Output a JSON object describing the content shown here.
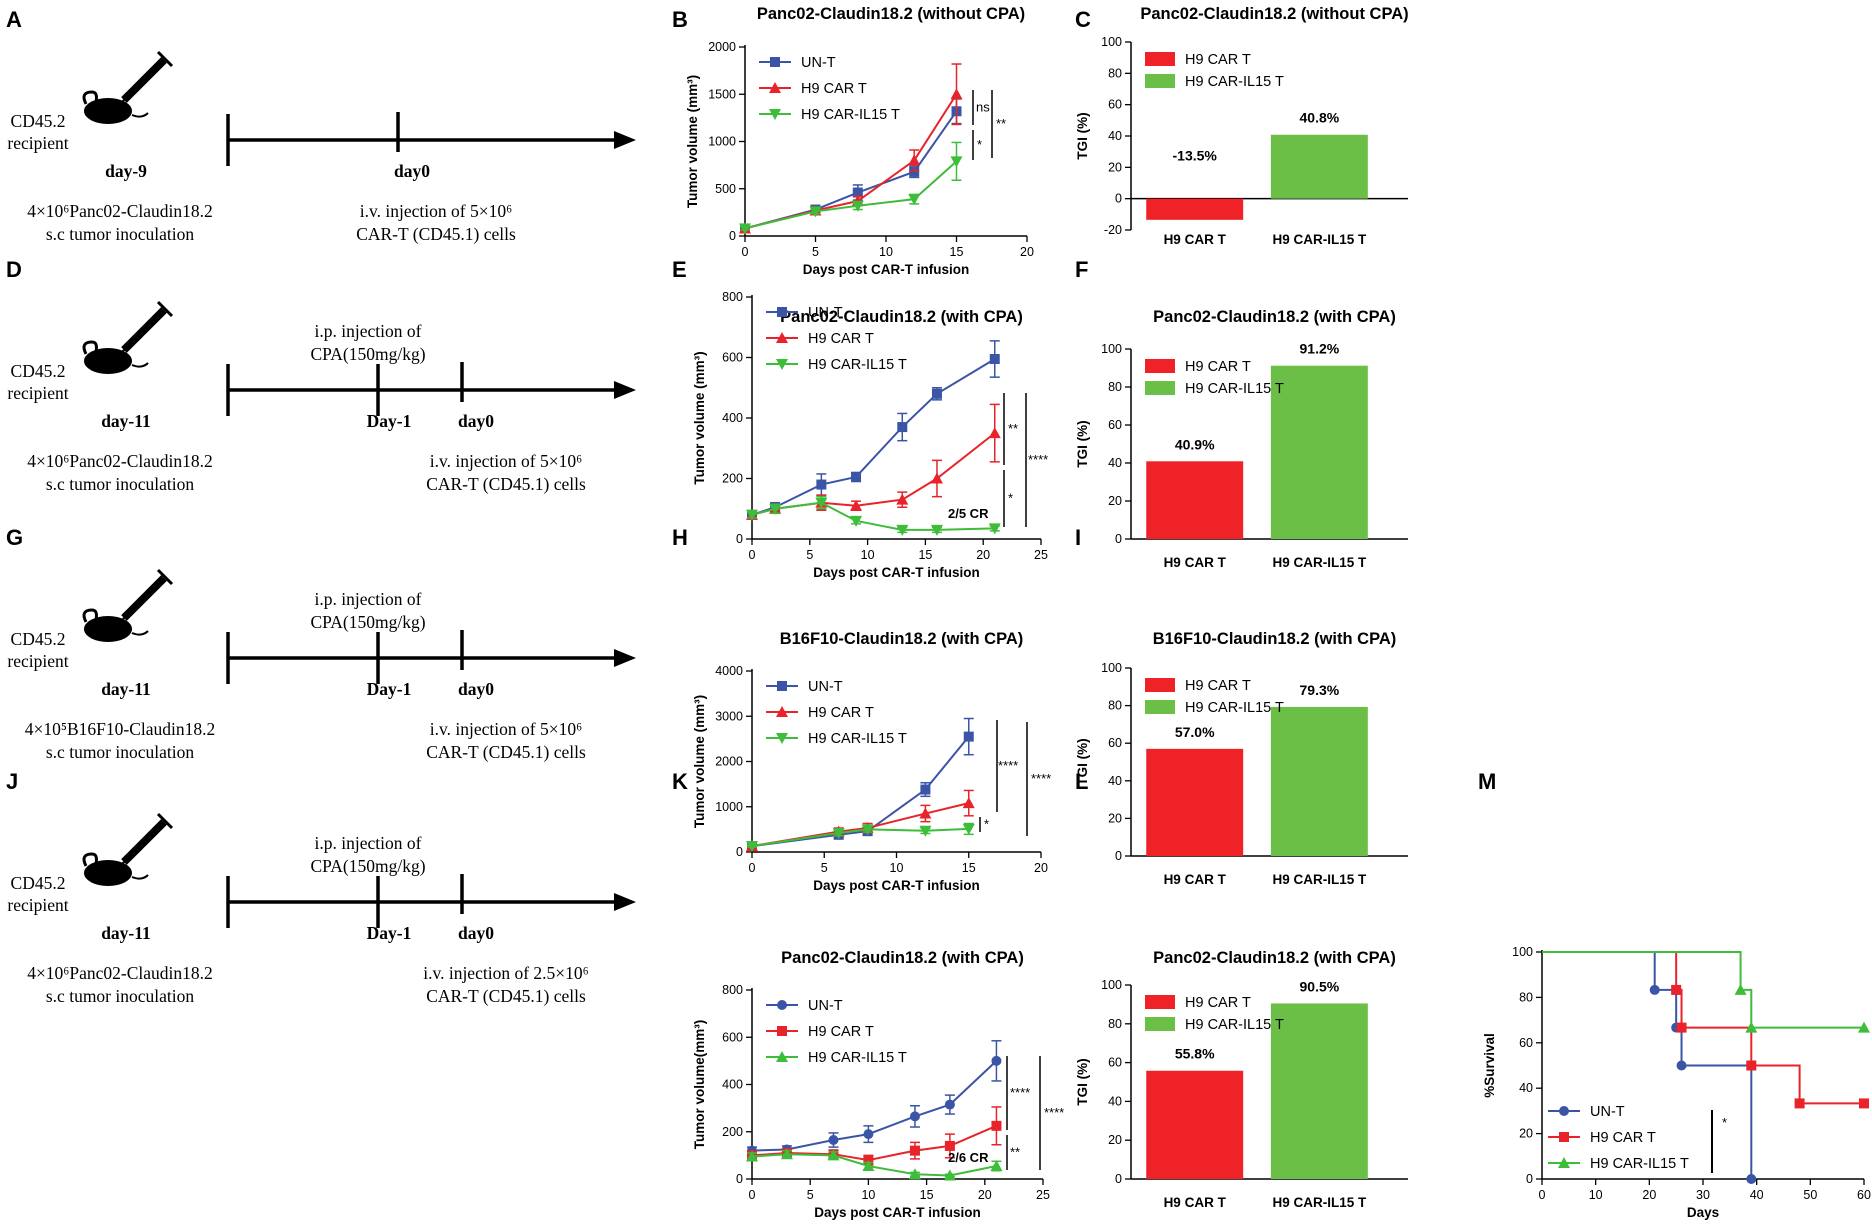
{
  "colors": {
    "unt": "#3a55a6",
    "car": "#e8232a",
    "il15": "#3ebd3a",
    "bar_car": "#ee2227",
    "bar_il15": "#6cbf46"
  },
  "panel_letters": [
    "A",
    "B",
    "C",
    "D",
    "E",
    "F",
    "G",
    "H",
    "I",
    "J",
    "K",
    "L",
    "M"
  ],
  "timelines": [
    {
      "letter": "A",
      "recipient": [
        "CD45.2",
        "recipient"
      ],
      "start_day": "day-9",
      "mid": null,
      "end_day": "day0",
      "inoc": [
        "4×10⁶Panc02-Claudin18.2",
        "s.c tumor inoculation"
      ],
      "inj": [
        "i.v. injection of 5×10⁶",
        "CAR-T (CD45.1) cells"
      ]
    },
    {
      "letter": "D",
      "recipient": [
        "CD45.2",
        "recipient"
      ],
      "start_day": "day-11",
      "mid": {
        "day": "Day-1",
        "text": [
          "i.p. injection of",
          "CPA(150mg/kg)"
        ]
      },
      "end_day": "day0",
      "inoc": [
        "4×10⁶Panc02-Claudin18.2",
        "s.c tumor inoculation"
      ],
      "inj": [
        "i.v. injection of 5×10⁶",
        "CAR-T (CD45.1) cells"
      ]
    },
    {
      "letter": "G",
      "recipient": [
        "CD45.2",
        "recipient"
      ],
      "start_day": "day-11",
      "mid": {
        "day": "Day-1",
        "text": [
          "i.p. injection of",
          "CPA(150mg/kg)"
        ]
      },
      "end_day": "day0",
      "inoc": [
        "4×10⁵B16F10-Claudin18.2",
        "s.c tumor inoculation"
      ],
      "inj": [
        "i.v. injection of 5×10⁶",
        "CAR-T (CD45.1) cells"
      ]
    },
    {
      "letter": "J",
      "recipient": [
        "CD45.2",
        "recipient"
      ],
      "start_day": "day-11",
      "mid": {
        "day": "Day-1",
        "text": [
          "i.p. injection of",
          "CPA(150mg/kg)"
        ]
      },
      "end_day": "day0",
      "inoc": [
        "4×10⁶Panc02-Claudin18.2",
        "s.c tumor inoculation"
      ],
      "inj": [
        "i.v. injection of 2.5×10⁶",
        "CAR-T (CD45.1) cells"
      ]
    }
  ],
  "chart_data": [
    {
      "letter": "B",
      "type": "line",
      "title": "Panc02-Claudin18.2 (without CPA)",
      "xlabel": "Days post CAR-T infusion",
      "ylabel": "Tumor volume (mm³)",
      "xlim": [
        0,
        20
      ],
      "xticks": [
        0,
        5,
        10,
        15,
        20
      ],
      "ylim": [
        0,
        2000
      ],
      "yticks": [
        0,
        500,
        1000,
        1500,
        2000
      ],
      "series": [
        {
          "name": "UN-T",
          "marker": "square",
          "x": [
            0,
            5,
            8,
            12,
            15
          ],
          "y": [
            80,
            280,
            460,
            680,
            1320
          ],
          "err": [
            15,
            30,
            80,
            60,
            130
          ]
        },
        {
          "name": "H9 CAR T",
          "marker": "triangle",
          "x": [
            0,
            5,
            8,
            12,
            15
          ],
          "y": [
            80,
            270,
            370,
            800,
            1500
          ],
          "err": [
            15,
            30,
            50,
            110,
            320
          ]
        },
        {
          "name": "H9 CAR-IL15 T",
          "marker": "triangle-down",
          "x": [
            0,
            5,
            8,
            12,
            15
          ],
          "y": [
            80,
            260,
            320,
            390,
            790
          ],
          "err": [
            15,
            25,
            40,
            50,
            200
          ]
        }
      ],
      "annotations": [
        {
          "text": "ns"
        },
        {
          "text": "*"
        },
        {
          "text": "**"
        }
      ]
    },
    {
      "letter": "C",
      "type": "bar",
      "title": "Panc02-Claudin18.2 (without CPA)",
      "ylabel": "TGI (%)",
      "ylim": [
        -20,
        100
      ],
      "yticks": [
        -20,
        0,
        20,
        40,
        60,
        80,
        100
      ],
      "categories": [
        "H9 CAR T",
        "H9 CAR-IL15 T"
      ],
      "values": [
        -13.5,
        40.8
      ],
      "labels": [
        "-13.5%",
        "40.8%"
      ],
      "legend": [
        "H9 CAR T",
        "H9 CAR-IL15 T"
      ]
    },
    {
      "letter": "E",
      "type": "line",
      "title": "Panc02-Claudin18.2 (with CPA)",
      "xlabel": "Days post CAR-T infusion",
      "ylabel": "Tumor volume (mm³)",
      "xlim": [
        0,
        25
      ],
      "xticks": [
        0,
        5,
        10,
        15,
        20,
        25
      ],
      "ylim": [
        0,
        800
      ],
      "yticks": [
        0,
        200,
        400,
        600,
        800
      ],
      "series": [
        {
          "name": "UN-T",
          "marker": "square",
          "x": [
            0,
            2,
            6,
            9,
            13,
            16,
            21
          ],
          "y": [
            80,
            105,
            180,
            205,
            370,
            480,
            595
          ],
          "err": [
            10,
            15,
            35,
            15,
            45,
            20,
            60
          ]
        },
        {
          "name": "H9 CAR T",
          "marker": "triangle",
          "x": [
            0,
            2,
            6,
            9,
            13,
            16,
            21
          ],
          "y": [
            80,
            100,
            120,
            110,
            130,
            200,
            350
          ],
          "err": [
            10,
            15,
            25,
            15,
            25,
            60,
            95
          ]
        },
        {
          "name": "H9 CAR-IL15 T",
          "marker": "triangle-down",
          "x": [
            0,
            2,
            6,
            9,
            13,
            16,
            21
          ],
          "y": [
            80,
            100,
            120,
            60,
            30,
            30,
            35
          ],
          "err": [
            10,
            15,
            20,
            10,
            8,
            8,
            8
          ]
        }
      ],
      "annotations": [
        {
          "text": "2/5 CR"
        },
        {
          "text": "**"
        },
        {
          "text": "*"
        },
        {
          "text": "****"
        }
      ]
    },
    {
      "letter": "F",
      "type": "bar",
      "title": "Panc02-Claudin18.2 (with CPA)",
      "ylabel": "TGI (%)",
      "ylim": [
        0,
        100
      ],
      "yticks": [
        0,
        20,
        40,
        60,
        80,
        100
      ],
      "categories": [
        "H9 CAR T",
        "H9 CAR-IL15 T"
      ],
      "values": [
        40.9,
        91.2
      ],
      "labels": [
        "40.9%",
        "91.2%"
      ],
      "legend": [
        "H9 CAR T",
        "H9 CAR-IL15 T"
      ]
    },
    {
      "letter": "H",
      "type": "line",
      "title": "B16F10-Claudin18.2 (with CPA)",
      "xlabel": "Days post CAR-T infusion",
      "ylabel": "Tumor volume (mm³)",
      "xlim": [
        0,
        20
      ],
      "xticks": [
        0,
        5,
        10,
        15,
        20
      ],
      "ylim": [
        0,
        4000
      ],
      "yticks": [
        0,
        1000,
        2000,
        3000,
        4000
      ],
      "series": [
        {
          "name": "UN-T",
          "marker": "square",
          "x": [
            0,
            6,
            8,
            12,
            15
          ],
          "y": [
            130,
            380,
            460,
            1380,
            2550
          ],
          "err": [
            20,
            60,
            80,
            150,
            400
          ]
        },
        {
          "name": "H9 CAR T",
          "marker": "triangle",
          "x": [
            0,
            6,
            8,
            12,
            15
          ],
          "y": [
            130,
            450,
            530,
            850,
            1080
          ],
          "err": [
            20,
            80,
            100,
            180,
            280
          ]
        },
        {
          "name": "H9 CAR-IL15 T",
          "marker": "triangle-down",
          "x": [
            0,
            6,
            8,
            12,
            15
          ],
          "y": [
            130,
            420,
            500,
            470,
            510
          ],
          "err": [
            20,
            60,
            60,
            60,
            120
          ]
        }
      ],
      "annotations": [
        {
          "text": "****"
        },
        {
          "text": "*"
        },
        {
          "text": "****"
        }
      ]
    },
    {
      "letter": "I",
      "type": "bar",
      "title": "B16F10-Claudin18.2 (with CPA)",
      "ylabel": "TGI (%)",
      "ylim": [
        0,
        100
      ],
      "yticks": [
        0,
        20,
        40,
        60,
        80,
        100
      ],
      "categories": [
        "H9 CAR T",
        "H9 CAR-IL15 T"
      ],
      "values": [
        57.0,
        79.3
      ],
      "labels": [
        "57.0%",
        "79.3%"
      ],
      "legend": [
        "H9 CAR T",
        "H9 CAR-IL15 T"
      ]
    },
    {
      "letter": "K",
      "type": "line",
      "title": "Panc02-Claudin18.2 (with CPA)",
      "xlabel": "Days post CAR-T infusion",
      "ylabel": "Tumor volume(mm³)",
      "xlim": [
        0,
        25
      ],
      "xticks": [
        0,
        5,
        10,
        15,
        20,
        25
      ],
      "ylim": [
        0,
        800
      ],
      "yticks": [
        0,
        200,
        400,
        600,
        800
      ],
      "series": [
        {
          "name": "UN-T",
          "marker": "circle",
          "x": [
            0,
            3,
            7,
            10,
            14,
            17,
            21
          ],
          "y": [
            120,
            125,
            165,
            190,
            265,
            315,
            500
          ],
          "err": [
            15,
            15,
            30,
            35,
            45,
            40,
            85
          ]
        },
        {
          "name": "H9 CAR T",
          "marker": "square",
          "x": [
            0,
            3,
            7,
            10,
            14,
            17,
            21
          ],
          "y": [
            100,
            110,
            105,
            80,
            120,
            140,
            225
          ],
          "err": [
            15,
            15,
            15,
            20,
            35,
            50,
            80
          ]
        },
        {
          "name": "H9 CAR-IL15 T",
          "marker": "triangle",
          "x": [
            0,
            3,
            7,
            10,
            14,
            17,
            21
          ],
          "y": [
            95,
            105,
            100,
            55,
            20,
            15,
            55
          ],
          "err": [
            15,
            15,
            15,
            15,
            8,
            5,
            20
          ]
        }
      ],
      "annotations": [
        {
          "text": "2/6 CR"
        },
        {
          "text": "****"
        },
        {
          "text": "**"
        },
        {
          "text": "****"
        }
      ]
    },
    {
      "letter": "L",
      "type": "bar",
      "title": "Panc02-Claudin18.2 (with CPA)",
      "ylabel": "TGI (%)",
      "ylim": [
        0,
        100
      ],
      "yticks": [
        0,
        20,
        40,
        60,
        80,
        100
      ],
      "categories": [
        "H9 CAR T",
        "H9 CAR-IL15 T"
      ],
      "values": [
        55.8,
        90.5
      ],
      "labels": [
        "55.8%",
        "90.5%"
      ],
      "legend": [
        "H9 CAR T",
        "H9 CAR-IL15 T"
      ]
    },
    {
      "letter": "M",
      "type": "line",
      "subtype": "survival",
      "xlabel": "Days",
      "ylabel": "%Survival",
      "xlim": [
        0,
        60
      ],
      "xticks": [
        0,
        10,
        20,
        30,
        40,
        50,
        60
      ],
      "ylim": [
        0,
        100
      ],
      "yticks": [
        0,
        20,
        40,
        60,
        80,
        100
      ],
      "series": [
        {
          "name": "UN-T",
          "marker": "circle",
          "steps": [
            [
              0,
              100
            ],
            [
              21,
              100
            ],
            [
              21,
              83.3
            ],
            [
              25,
              83.3
            ],
            [
              25,
              66.7
            ],
            [
              26,
              66.7
            ],
            [
              26,
              50
            ],
            [
              39,
              50
            ],
            [
              39,
              0
            ]
          ],
          "marks": [
            [
              21,
              83.3
            ],
            [
              25,
              83.3
            ],
            [
              25,
              66.7
            ],
            [
              26,
              66.7
            ],
            [
              26,
              50
            ],
            [
              39,
              50
            ],
            [
              39,
              0
            ]
          ]
        },
        {
          "name": "H9 CAR T",
          "marker": "square",
          "steps": [
            [
              0,
              100
            ],
            [
              25,
              100
            ],
            [
              25,
              83.3
            ],
            [
              26,
              83.3
            ],
            [
              26,
              66.7
            ],
            [
              39,
              66.7
            ],
            [
              39,
              50
            ],
            [
              48,
              50
            ],
            [
              48,
              33.3
            ],
            [
              60,
              33.3
            ]
          ],
          "marks": [
            [
              25,
              83.3
            ],
            [
              26,
              66.7
            ],
            [
              39,
              50
            ],
            [
              48,
              33.3
            ],
            [
              60,
              33.3
            ]
          ]
        },
        {
          "name": "H9 CAR-IL15 T",
          "marker": "triangle",
          "steps": [
            [
              0,
              100
            ],
            [
              37,
              100
            ],
            [
              37,
              83.3
            ],
            [
              39,
              83.3
            ],
            [
              39,
              66.7
            ],
            [
              60,
              66.7
            ]
          ],
          "marks": [
            [
              37,
              83.3
            ],
            [
              39,
              66.7
            ],
            [
              60,
              66.7
            ]
          ]
        }
      ],
      "annotations": [
        {
          "text": "*"
        }
      ]
    }
  ]
}
